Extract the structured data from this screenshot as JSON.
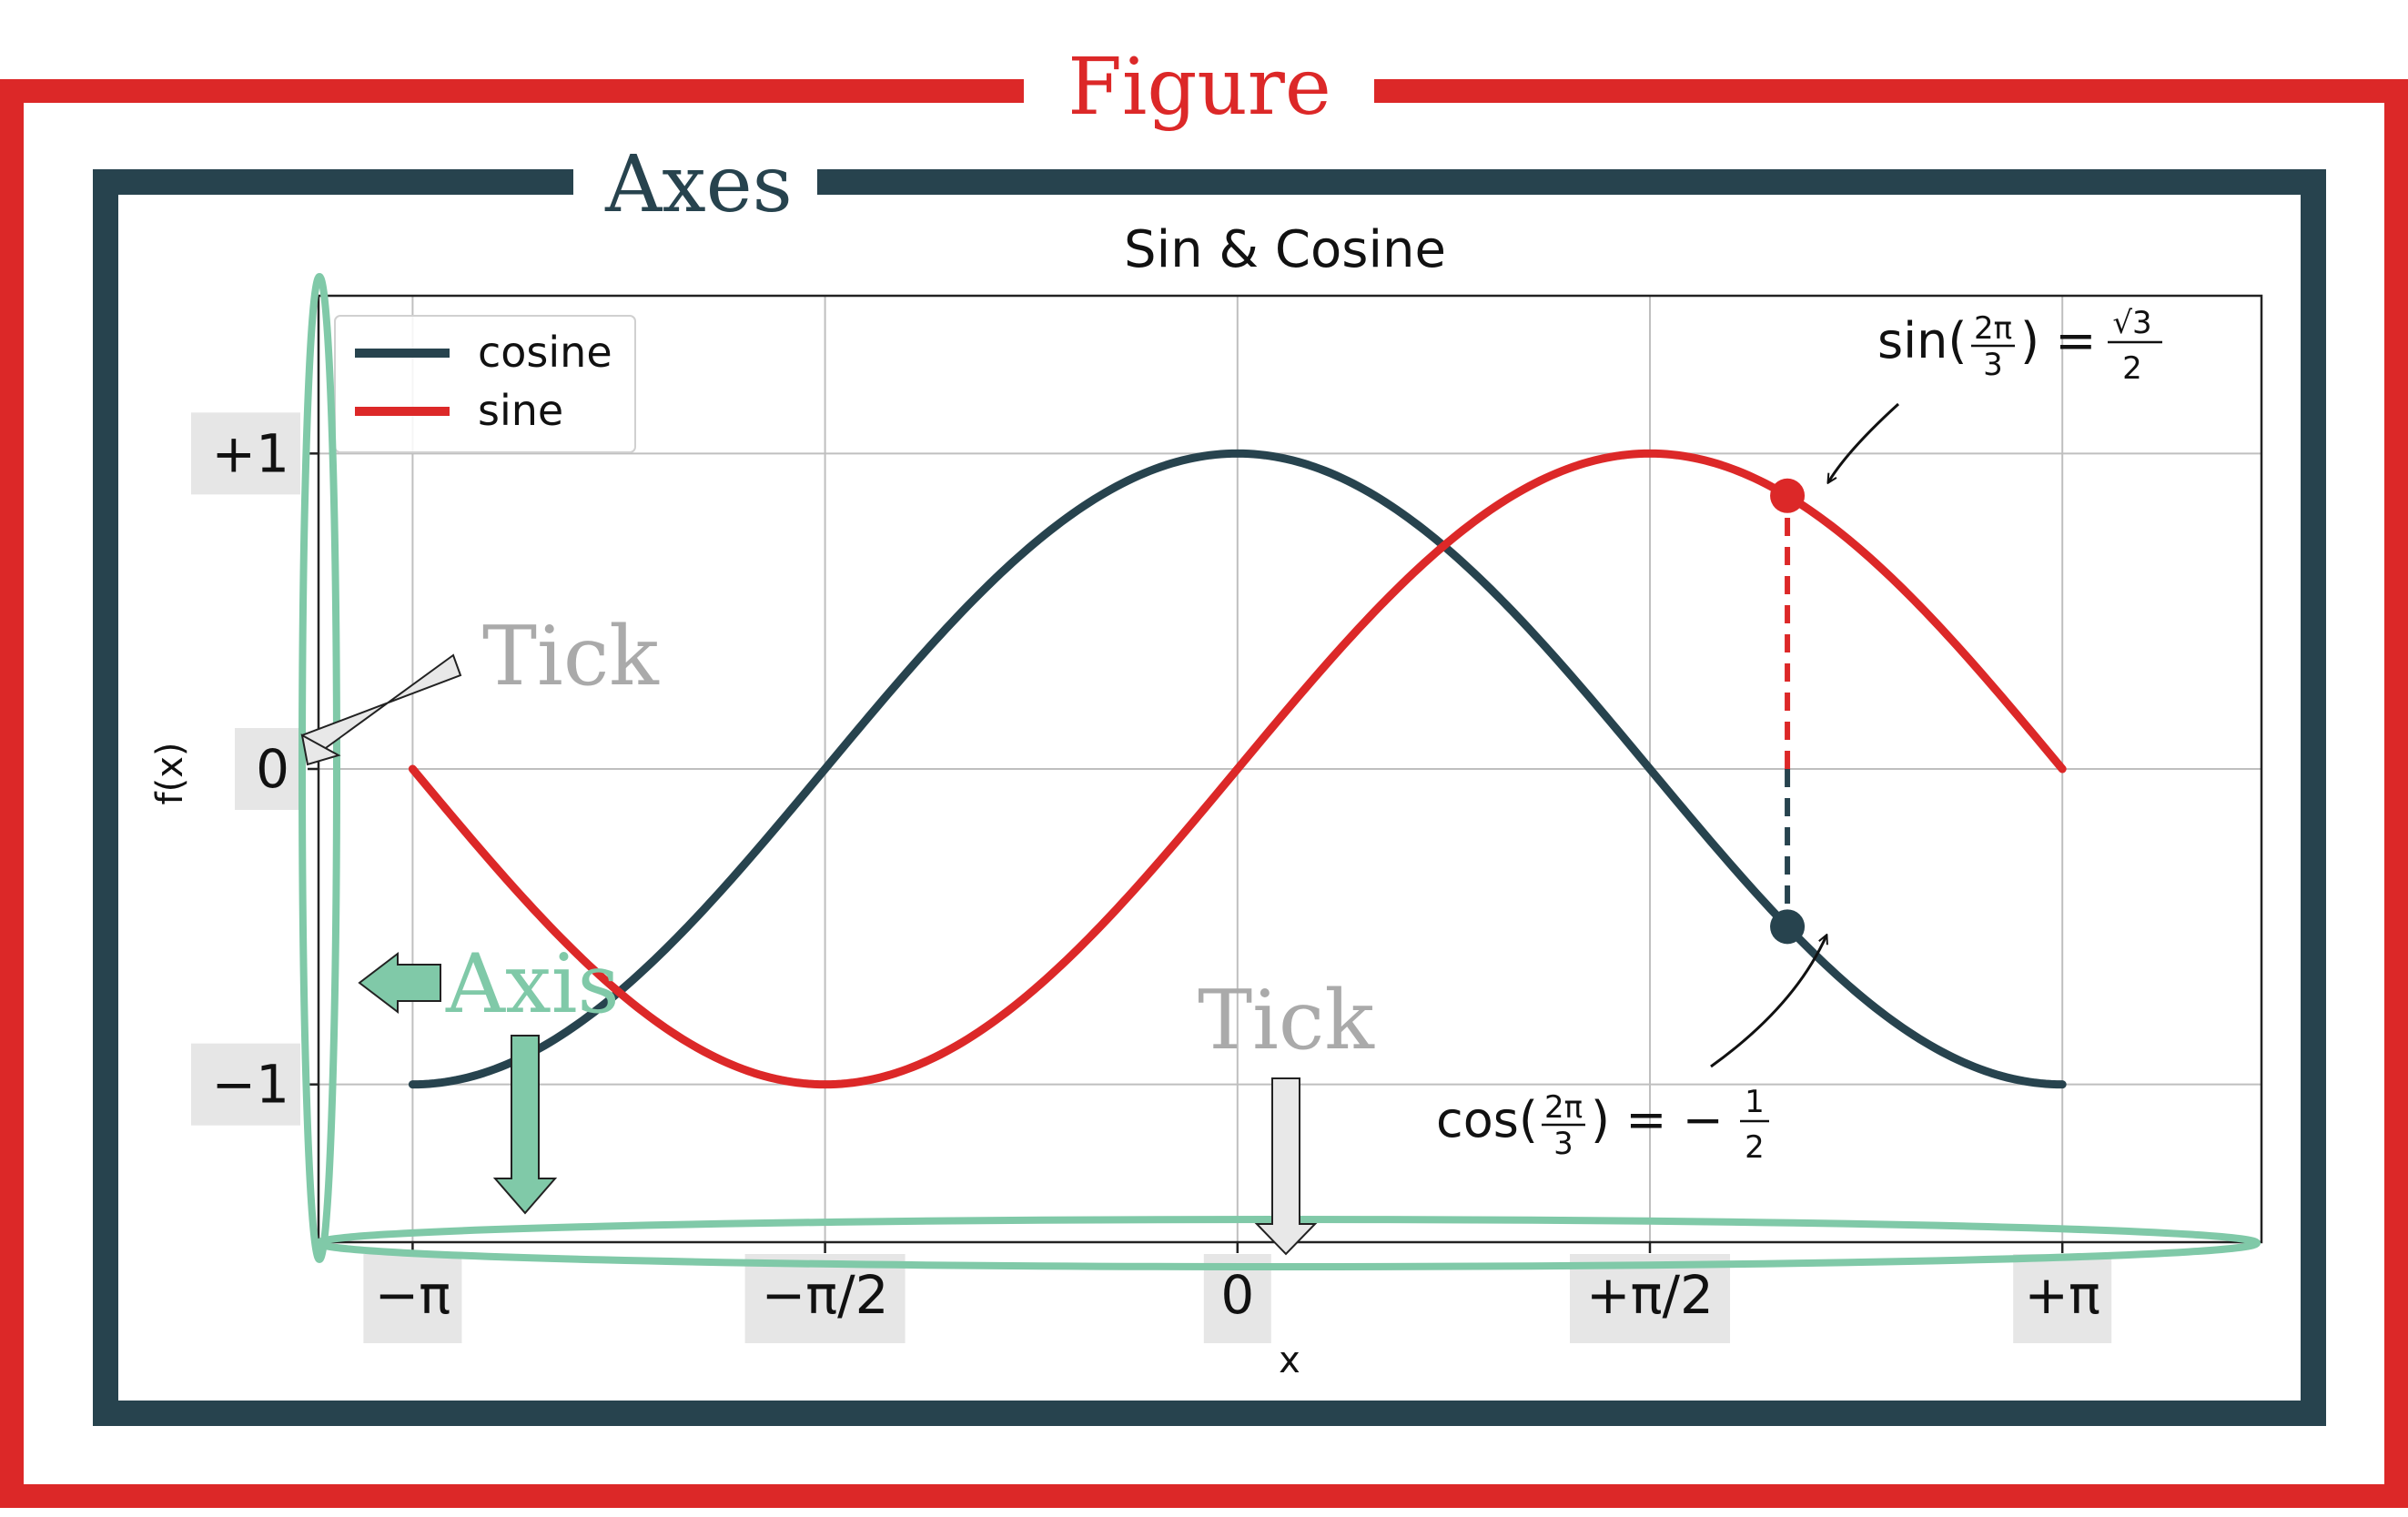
{
  "labels": {
    "figure": "Figure",
    "axes": "Axes",
    "tick_left": "Tick",
    "tick_bottom": "Tick",
    "axis": "Axis"
  },
  "colors": {
    "figure_frame": "#dc2828",
    "axes_frame": "#27434e",
    "axis_highlight": "#80c9a8",
    "tick_label": "#aaaaaa",
    "tick_bg": "#e6e6e6",
    "cosine": "#27434e",
    "sine": "#dc2828",
    "grid": "#bfbfbf"
  },
  "chart_data": {
    "type": "line",
    "title": "Sin & Cosine",
    "xlabel": "x",
    "ylabel": "f(x)",
    "xlim": [
      -3.5,
      3.9
    ],
    "ylim": [
      -1.5,
      1.5
    ],
    "xticks": [
      {
        "value": -3.14159,
        "label": "−π"
      },
      {
        "value": -1.5708,
        "label": "−π/2"
      },
      {
        "value": 0,
        "label": "0"
      },
      {
        "value": 1.5708,
        "label": "+π/2"
      },
      {
        "value": 3.14159,
        "label": "+π"
      }
    ],
    "yticks": [
      {
        "value": 1,
        "label": "+1"
      },
      {
        "value": 0,
        "label": "0"
      },
      {
        "value": -1,
        "label": "−1"
      }
    ],
    "grid": true,
    "legend": "top-left",
    "series": [
      {
        "name": "cosine",
        "function": "cos",
        "x_range": [
          -3.14159,
          3.14159
        ]
      },
      {
        "name": "sine",
        "function": "sin",
        "x_range": [
          -3.14159,
          3.14159
        ]
      }
    ],
    "annotations": [
      {
        "x": 2.0944,
        "y": 0.866,
        "series": "sine",
        "text": "sin(2π/3) = √3/2"
      },
      {
        "x": 2.0944,
        "y": -0.5,
        "series": "cosine",
        "text": "cos(2π/3) = −1/2"
      }
    ]
  }
}
